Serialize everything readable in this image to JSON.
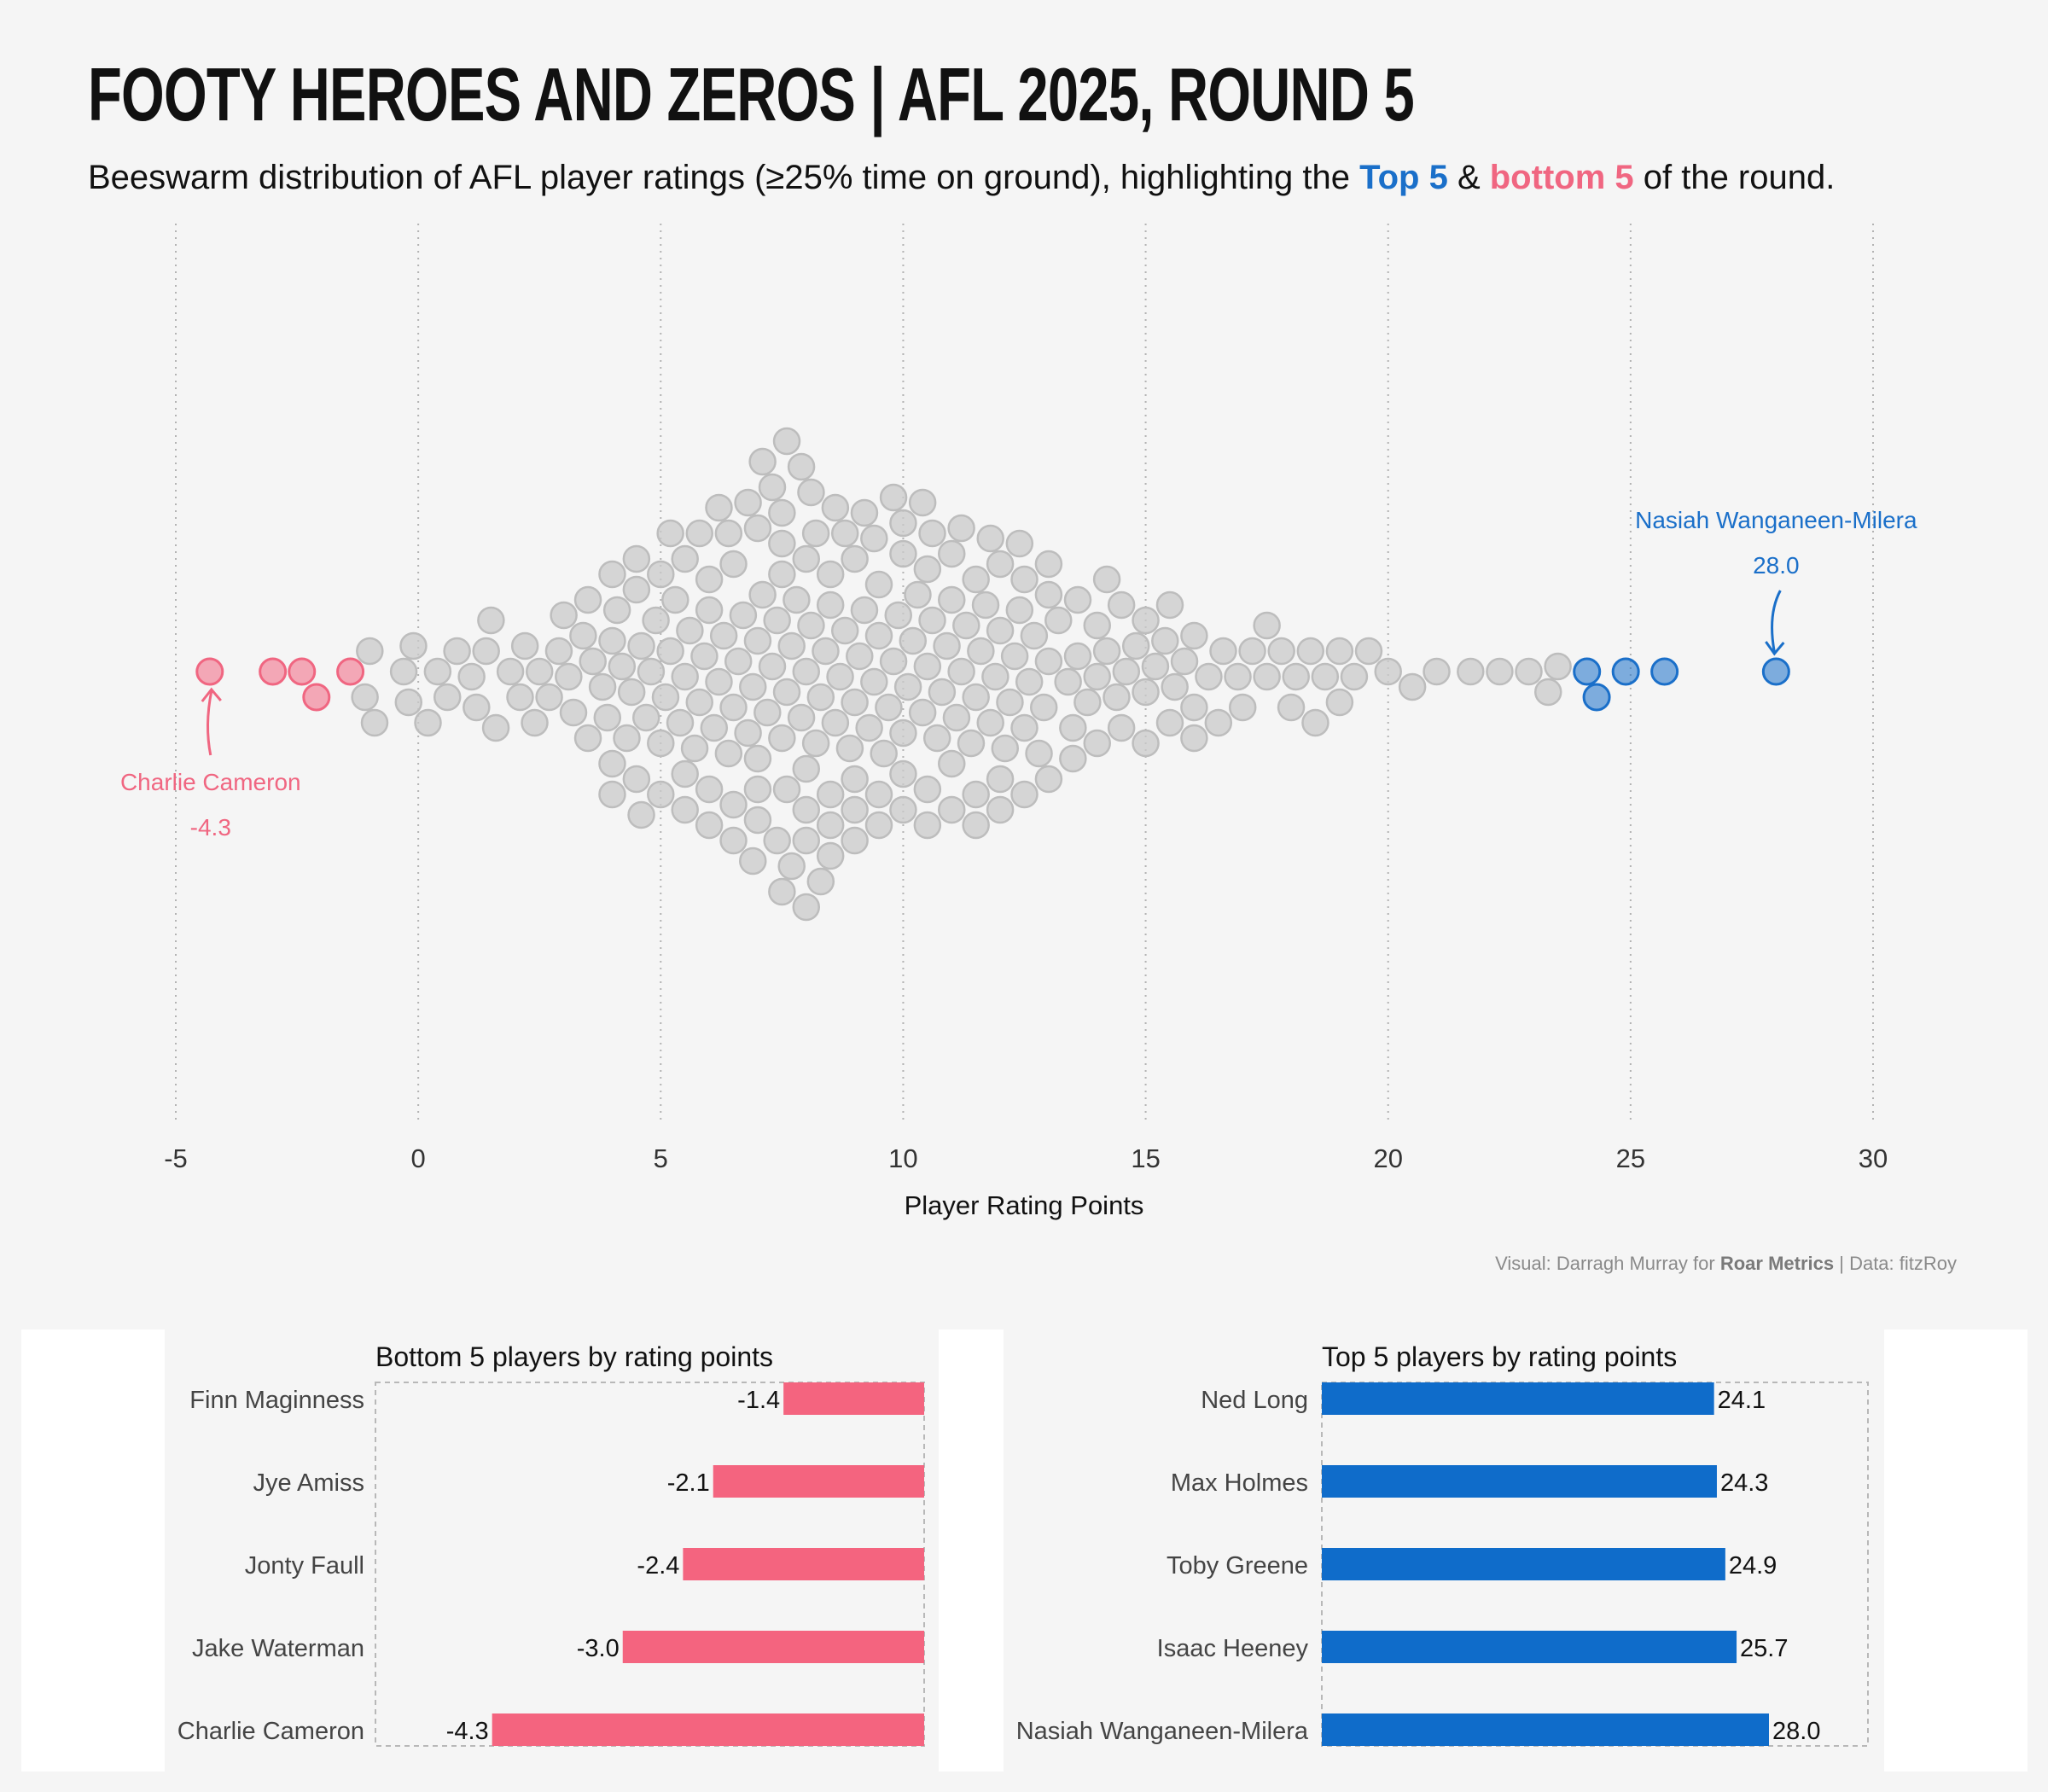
{
  "header": {
    "title": "FOOTY HEROES AND ZEROS |  AFL 2025, ROUND 5",
    "subtitle_pre": "Beeswarm distribution of AFL player ratings (≥25% time on ground), highlighting the ",
    "subtitle_top": "Top 5",
    "subtitle_amp": " & ",
    "subtitle_bottom": "bottom 5",
    "subtitle_post": " of the round."
  },
  "colors": {
    "top": "#1a6fc9",
    "bottom": "#f06681",
    "other": "#c9c9c9",
    "bar_top": "#0f6cca",
    "bar_bottom": "#f4647f"
  },
  "caption": {
    "pre": "Visual: Darragh Murray  for ",
    "brand": "Roar Metrics",
    "post": " | Data: fitzRoy"
  },
  "chart_data": [
    {
      "type": "scatter",
      "subtype": "beeswarm",
      "xlabel": "Player Rating Points",
      "xlim": [
        -5,
        30
      ],
      "xticks": [
        -5,
        0,
        5,
        10,
        15,
        20,
        25,
        30
      ],
      "grid": "vertical dotted",
      "highlights": {
        "bottom": [
          -4.3,
          -3.0,
          -2.4,
          -2.1,
          -1.4
        ],
        "top": [
          24.1,
          24.3,
          24.9,
          25.7,
          28.0
        ]
      },
      "annotations": [
        {
          "name": "Charlie Cameron",
          "value": "-4.3",
          "x": -4.3,
          "group": "bottom"
        },
        {
          "name": "Nasiah Wanganeen-Milera",
          "value": "28.0",
          "x": 28.0,
          "group": "top"
        }
      ],
      "others": [
        -1.1,
        -1.0,
        -0.9,
        -0.3,
        -0.2,
        -0.1,
        0.2,
        0.4,
        0.6,
        0.8,
        1.1,
        1.2,
        1.4,
        1.5,
        1.6,
        1.9,
        2.1,
        2.2,
        2.4,
        2.5,
        2.7,
        2.9,
        3.1,
        3.2,
        3.4,
        3.6,
        3.8,
        3.9,
        4.0,
        4.1,
        4.2,
        4.3,
        4.4,
        4.5,
        4.6,
        4.7,
        4.8,
        4.9,
        5.0,
        5.1,
        5.2,
        5.3,
        5.4,
        5.5,
        5.6,
        5.7,
        5.8,
        5.9,
        6.0,
        6.1,
        6.2,
        6.3,
        6.4,
        6.5,
        6.6,
        6.7,
        6.8,
        6.9,
        7.0,
        7.1,
        7.2,
        7.3,
        7.4,
        7.5,
        7.6,
        7.7,
        7.8,
        7.9,
        8.0,
        8.1,
        8.2,
        8.3,
        8.4,
        8.5,
        8.6,
        8.7,
        8.8,
        8.9,
        9.0,
        9.1,
        9.2,
        9.3,
        9.4,
        9.5,
        9.6,
        9.7,
        9.8,
        9.9,
        10.0,
        10.1,
        10.2,
        10.3,
        10.4,
        10.5,
        10.6,
        10.7,
        10.8,
        10.9,
        11.0,
        11.1,
        11.2,
        11.3,
        11.4,
        11.5,
        11.6,
        11.7,
        11.8,
        11.9,
        12.0,
        12.1,
        12.2,
        12.3,
        12.4,
        12.5,
        12.6,
        12.7,
        12.8,
        12.9,
        13.0,
        13.2,
        13.4,
        13.6,
        13.8,
        14.0,
        14.2,
        14.4,
        14.6,
        14.8,
        15.0,
        15.2,
        15.4,
        15.6,
        15.8,
        16.0,
        16.3,
        16.6,
        16.9,
        17.2,
        17.5,
        17.8,
        18.1,
        18.4,
        18.7,
        19.0,
        19.3,
        19.6,
        20.0,
        20.5,
        21.0,
        21.7,
        22.3,
        22.9,
        23.3,
        23.5,
        3.5,
        4.0,
        4.5,
        5.0,
        5.5,
        6.0,
        6.5,
        7.0,
        7.5,
        8.0,
        8.5,
        9.0,
        9.5,
        10.0,
        10.5,
        11.0,
        11.5,
        12.0,
        12.5,
        13.0,
        13.5,
        14.0,
        14.5,
        15.0,
        15.5,
        16.0,
        16.5,
        17.0,
        17.5,
        18.0,
        18.5,
        19.0,
        3.0,
        3.5,
        4.0,
        4.5,
        5.0,
        5.5,
        6.0,
        6.5,
        7.0,
        7.5,
        8.0,
        8.5,
        9.0,
        9.5,
        10.0,
        10.5,
        11.0,
        11.5,
        12.0,
        12.5,
        13.0,
        13.5,
        14.0,
        14.5,
        15.0,
        15.5,
        16.0,
        4.0,
        4.6,
        5.2,
        5.8,
        6.4,
        7.0,
        7.6,
        8.2,
        8.8,
        9.4,
        10.0,
        10.6,
        11.2,
        11.8,
        12.4,
        13.0,
        13.6,
        14.2,
        5.5,
        6.0,
        6.5,
        7.0,
        7.5,
        8.0,
        8.5,
        9.0,
        9.5,
        10.0,
        10.5,
        11.0,
        11.5,
        12.0,
        6.2,
        6.8,
        7.4,
        8.0,
        8.6,
        9.2,
        9.8,
        10.4,
        6.9,
        7.3,
        7.7,
        8.1,
        8.5,
        9.0,
        7.1,
        7.5,
        7.9,
        8.3,
        7.6,
        8.0
      ]
    },
    {
      "type": "bar",
      "title": "Bottom 5 players by rating points",
      "orientation": "horizontal",
      "categories": [
        "Finn Maginness",
        "Jye Amiss",
        "Jonty Faull",
        "Jake Waterman",
        "Charlie Cameron"
      ],
      "values": [
        -1.4,
        -2.1,
        -2.4,
        -3.0,
        -4.3
      ],
      "labels": [
        "-1.4",
        "-2.1",
        "-2.4",
        "-3.0",
        "-4.3"
      ]
    },
    {
      "type": "bar",
      "title": "Top 5 players by rating points",
      "orientation": "horizontal",
      "categories": [
        "Ned Long",
        "Max Holmes",
        "Toby Greene",
        "Isaac Heeney",
        "Nasiah Wanganeen-Milera"
      ],
      "values": [
        24.1,
        24.3,
        24.9,
        25.7,
        28.0
      ],
      "labels": [
        "24.1",
        "24.3",
        "24.9",
        "25.7",
        "28.0"
      ]
    }
  ]
}
